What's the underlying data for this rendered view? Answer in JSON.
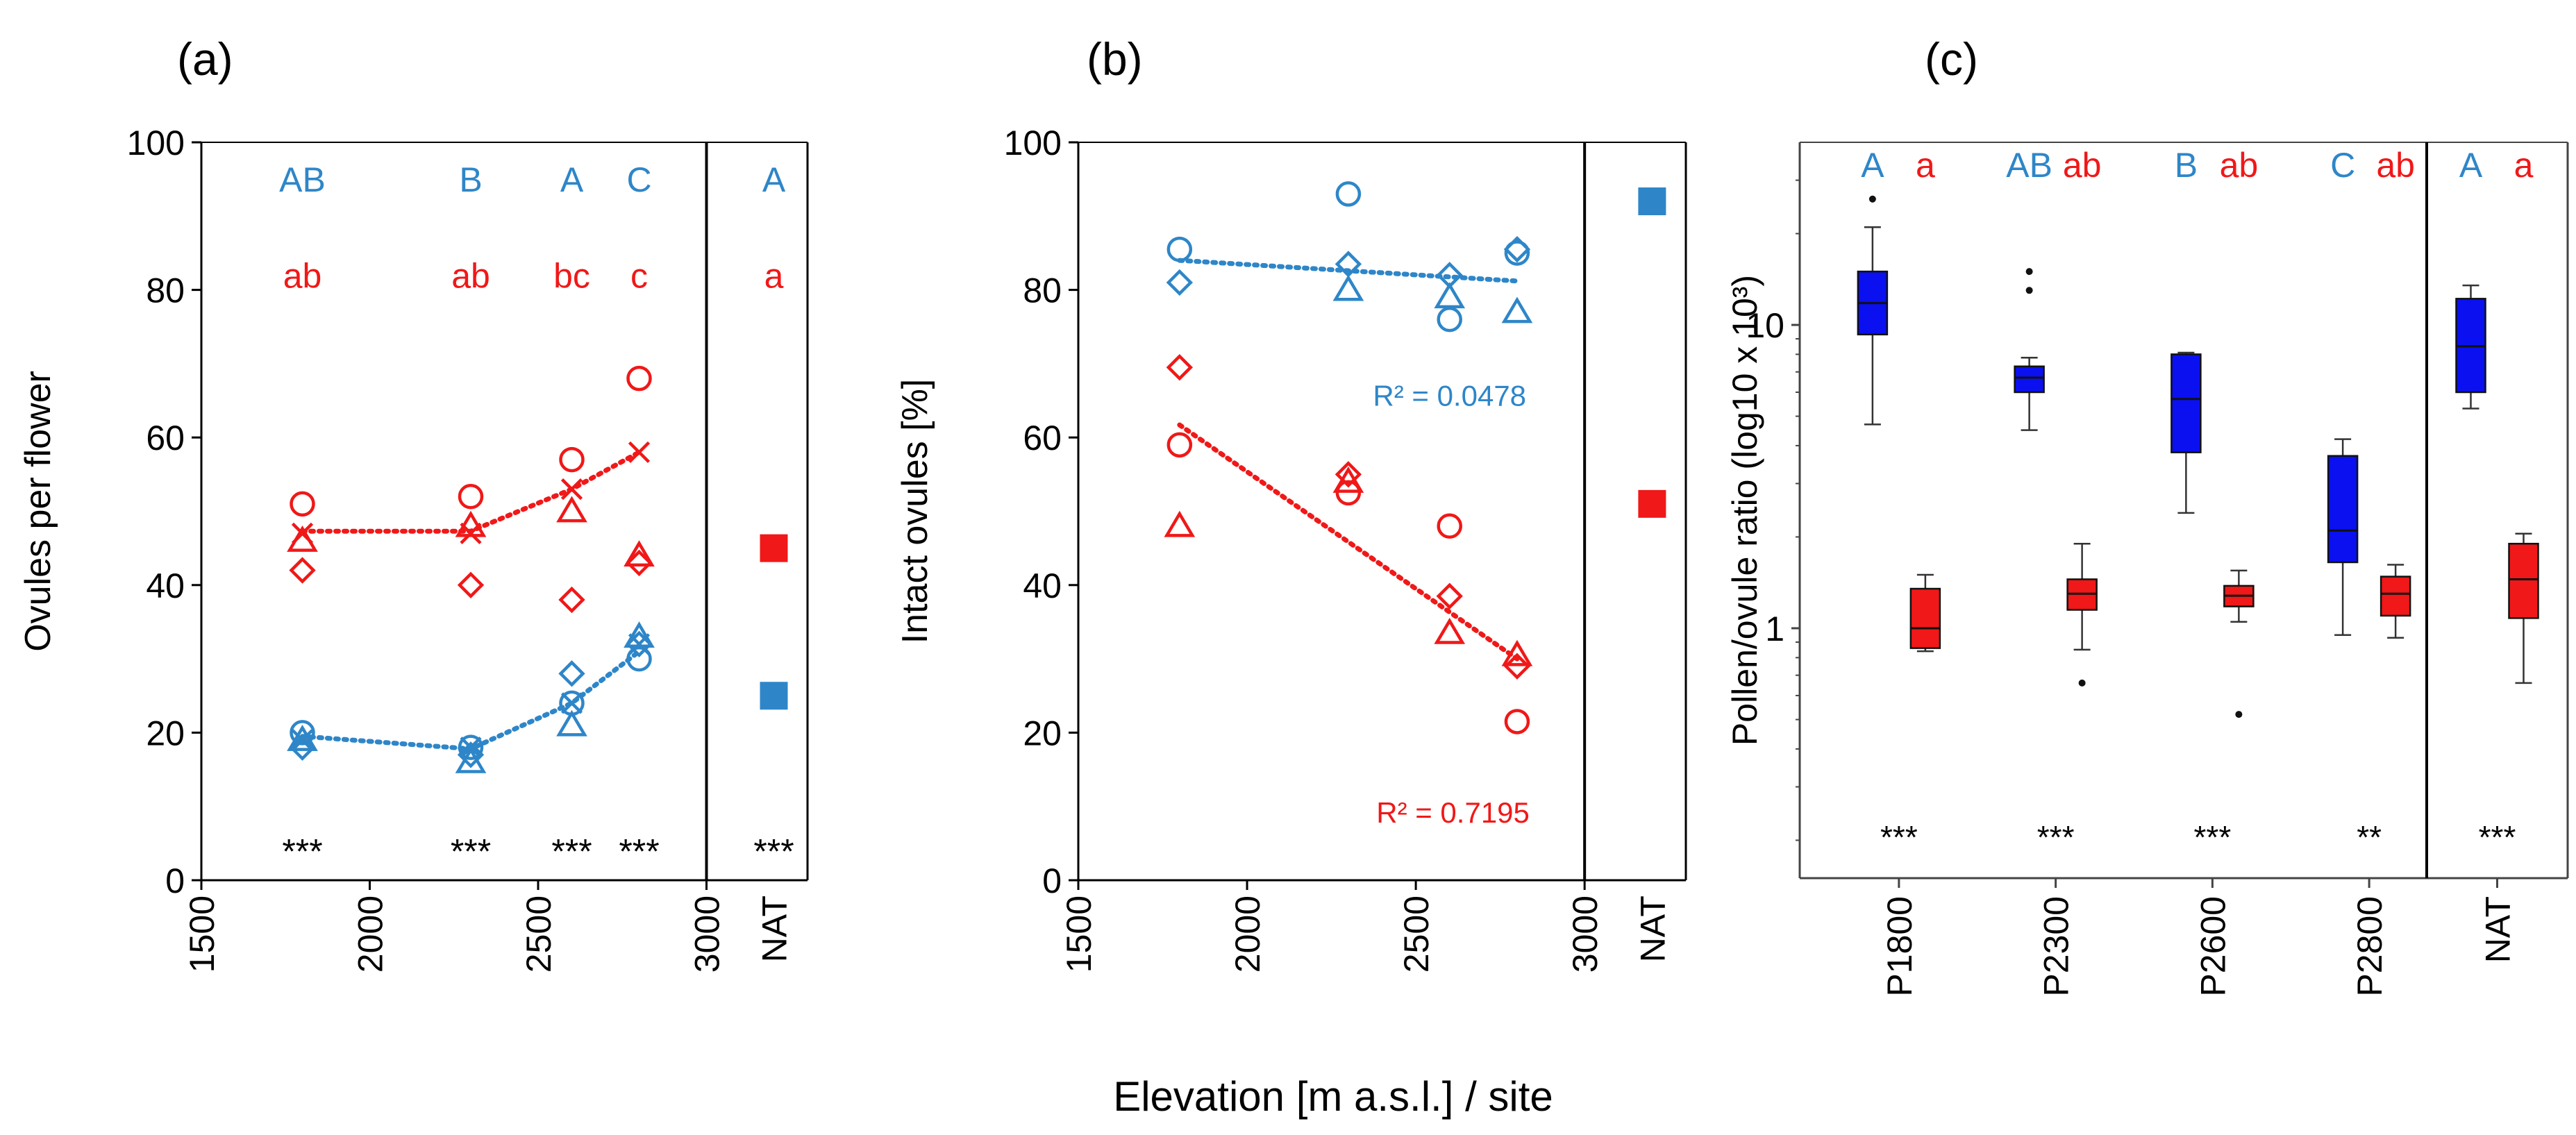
{
  "figure": {
    "shared_xlabel": "Elevation [m a.s.l.] / site",
    "colors": {
      "blue": "#2E86C8",
      "red": "#F01818",
      "box_blue": "#0A10F0",
      "box_red": "#F01818",
      "axis": "#000000"
    }
  },
  "chart_data": [
    {
      "panel_label": "(a)",
      "type": "scatter",
      "title": "",
      "xlabel": "",
      "ylabel": "Ovules per flower",
      "xlim": [
        1500,
        3300
      ],
      "ylim": [
        0,
        100
      ],
      "x_ticks": [
        "1500",
        "2000",
        "2500",
        "3000"
      ],
      "x_tick_values": [
        1500,
        2000,
        2500,
        3000
      ],
      "x_extra_ticks": [
        {
          "label": "NAT",
          "x": 3200
        }
      ],
      "y_ticks": [
        "0",
        "20",
        "40",
        "60",
        "80",
        "100"
      ],
      "y_tick_values": [
        0,
        20,
        40,
        60,
        80,
        100
      ],
      "divider_x": 3000,
      "series": [
        {
          "color": "red",
          "marker": "circle",
          "points": [
            [
              1800,
              51
            ],
            [
              2300,
              52
            ],
            [
              2600,
              57
            ],
            [
              2800,
              68
            ]
          ]
        },
        {
          "color": "red",
          "marker": "triangle",
          "points": [
            [
              1800,
              46
            ],
            [
              2300,
              48
            ],
            [
              2600,
              50
            ],
            [
              2800,
              44
            ]
          ]
        },
        {
          "color": "red",
          "marker": "diamond",
          "points": [
            [
              1800,
              42
            ],
            [
              2300,
              40
            ],
            [
              2600,
              38
            ],
            [
              2800,
              43
            ]
          ]
        },
        {
          "color": "red",
          "marker": "x",
          "points": [
            [
              1800,
              47
            ],
            [
              2300,
              47
            ],
            [
              2600,
              53
            ],
            [
              2800,
              58
            ]
          ]
        },
        {
          "color": "red",
          "marker": "square",
          "points": [
            [
              3200,
              45
            ]
          ]
        },
        {
          "color": "blue",
          "marker": "circle",
          "points": [
            [
              1800,
              20
            ],
            [
              2300,
              18
            ],
            [
              2600,
              24
            ],
            [
              2800,
              30
            ]
          ]
        },
        {
          "color": "blue",
          "marker": "triangle",
          "points": [
            [
              1800,
              19
            ],
            [
              2300,
              16
            ],
            [
              2600,
              21
            ],
            [
              2800,
              33
            ]
          ]
        },
        {
          "color": "blue",
          "marker": "diamond",
          "points": [
            [
              1800,
              18
            ],
            [
              2300,
              17
            ],
            [
              2600,
              28
            ],
            [
              2800,
              32
            ]
          ]
        },
        {
          "color": "blue",
          "marker": "x",
          "points": [
            [
              1800,
              19
            ],
            [
              2300,
              18
            ],
            [
              2600,
              24
            ],
            [
              2800,
              32
            ]
          ]
        },
        {
          "color": "blue",
          "marker": "square",
          "points": [
            [
              3200,
              25
            ]
          ]
        }
      ],
      "trend_lines": [
        {
          "color": "red",
          "points": [
            [
              1800,
              47.3
            ],
            [
              2300,
              47.3
            ],
            [
              2600,
              53
            ],
            [
              2800,
              58
            ]
          ]
        },
        {
          "color": "blue",
          "points": [
            [
              1800,
              19.5
            ],
            [
              2300,
              17.8
            ],
            [
              2600,
              24
            ],
            [
              2800,
              31
            ]
          ]
        }
      ],
      "annotations": [
        {
          "text": "AB",
          "x": 1800,
          "y": 95,
          "color": "blue"
        },
        {
          "text": "B",
          "x": 2300,
          "y": 95,
          "color": "blue"
        },
        {
          "text": "A",
          "x": 2600,
          "y": 95,
          "color": "blue"
        },
        {
          "text": "C",
          "x": 2800,
          "y": 95,
          "color": "blue"
        },
        {
          "text": "A",
          "x": 3200,
          "y": 95,
          "color": "blue"
        },
        {
          "text": "ab",
          "x": 1800,
          "y": 82,
          "color": "red"
        },
        {
          "text": "ab",
          "x": 2300,
          "y": 82,
          "color": "red"
        },
        {
          "text": "bc",
          "x": 2600,
          "y": 82,
          "color": "red"
        },
        {
          "text": "c",
          "x": 2800,
          "y": 82,
          "color": "red"
        },
        {
          "text": "a",
          "x": 3200,
          "y": 82,
          "color": "red"
        },
        {
          "text": "***",
          "x": 1800,
          "y": 4,
          "color": "black"
        },
        {
          "text": "***",
          "x": 2300,
          "y": 4,
          "color": "black"
        },
        {
          "text": "***",
          "x": 2600,
          "y": 4,
          "color": "black"
        },
        {
          "text": "***",
          "x": 2800,
          "y": 4,
          "color": "black"
        },
        {
          "text": "***",
          "x": 3200,
          "y": 4,
          "color": "black"
        }
      ]
    },
    {
      "panel_label": "(b)",
      "type": "scatter",
      "title": "",
      "xlabel": "",
      "ylabel": "Intact ovules [%]",
      "xlim": [
        1500,
        3300
      ],
      "ylim": [
        0,
        100
      ],
      "x_ticks": [
        "1500",
        "2000",
        "2500",
        "3000"
      ],
      "x_tick_values": [
        1500,
        2000,
        2500,
        3000
      ],
      "x_extra_ticks": [
        {
          "label": "NAT",
          "x": 3200
        }
      ],
      "y_ticks": [
        "0",
        "20",
        "40",
        "60",
        "80",
        "100"
      ],
      "y_tick_values": [
        0,
        20,
        40,
        60,
        80,
        100
      ],
      "divider_x": 3000,
      "series": [
        {
          "color": "blue",
          "marker": "circle",
          "points": [
            [
              1800,
              85.5
            ],
            [
              2300,
              93
            ],
            [
              2600,
              76
            ],
            [
              2800,
              85
            ]
          ]
        },
        {
          "color": "blue",
          "marker": "diamond",
          "points": [
            [
              1800,
              81
            ],
            [
              2300,
              83.5
            ],
            [
              2600,
              82
            ],
            [
              2800,
              85.5
            ]
          ]
        },
        {
          "color": "blue",
          "marker": "triangle",
          "points": [
            [
              2300,
              80
            ],
            [
              2600,
              79
            ],
            [
              2800,
              77
            ]
          ]
        },
        {
          "color": "blue",
          "marker": "square",
          "points": [
            [
              3200,
              92
            ]
          ]
        },
        {
          "color": "red",
          "marker": "diamond",
          "points": [
            [
              1800,
              69.5
            ],
            [
              2300,
              55
            ],
            [
              2600,
              38.5
            ],
            [
              2800,
              29
            ]
          ]
        },
        {
          "color": "red",
          "marker": "circle",
          "points": [
            [
              1800,
              59
            ],
            [
              2300,
              52.5
            ],
            [
              2600,
              48
            ],
            [
              2800,
              21.5
            ]
          ]
        },
        {
          "color": "red",
          "marker": "triangle",
          "points": [
            [
              1800,
              48
            ],
            [
              2300,
              54
            ],
            [
              2600,
              33.5
            ],
            [
              2800,
              30.5
            ]
          ]
        },
        {
          "color": "red",
          "marker": "square",
          "points": [
            [
              3200,
              51
            ]
          ]
        }
      ],
      "trend_lines": [
        {
          "color": "blue",
          "points": [
            [
              1800,
              84
            ],
            [
              2800,
              81.2
            ]
          ]
        },
        {
          "color": "red",
          "points": [
            [
              1800,
              61.7
            ],
            [
              2800,
              30
            ]
          ]
        }
      ],
      "annotations": [
        {
          "text": "R² = 0.0478",
          "x": 2600,
          "y": 66,
          "color": "blue"
        },
        {
          "text": "R² = 0.7195",
          "x": 2610,
          "y": 9.5,
          "color": "red"
        }
      ]
    },
    {
      "panel_label": "(c)",
      "type": "box",
      "title": "",
      "xlabel": "",
      "ylabel": "Pollen/ovule ratio (log10 x 10³)",
      "y_scale": "log",
      "ylim": [
        0.15,
        40
      ],
      "y_ticks": [
        "1",
        "10"
      ],
      "y_tick_values": [
        1,
        10
      ],
      "categories": [
        "P1800",
        "P2300",
        "P2600",
        "P2800",
        "NAT"
      ],
      "divider_after_index": 3,
      "series": [
        {
          "color": "box_blue",
          "boxes": [
            {
              "whisker_low": 4.7,
              "q1": 9.3,
              "median": 11.8,
              "q3": 15.0,
              "whisker_high": 21.0,
              "outliers": [
                26
              ]
            },
            {
              "whisker_low": 4.5,
              "q1": 6.0,
              "median": 6.7,
              "q3": 7.3,
              "whisker_high": 7.8,
              "outliers": [
                13,
                15
              ]
            },
            {
              "whisker_low": 2.4,
              "q1": 3.8,
              "median": 5.7,
              "q3": 8.0,
              "whisker_high": 8.1,
              "outliers": []
            },
            {
              "whisker_low": 0.95,
              "q1": 1.65,
              "median": 2.1,
              "q3": 3.7,
              "whisker_high": 4.2,
              "outliers": []
            },
            {
              "whisker_low": 5.3,
              "q1": 6.0,
              "median": 8.5,
              "q3": 12.2,
              "whisker_high": 13.5,
              "outliers": []
            }
          ]
        },
        {
          "color": "box_red",
          "boxes": [
            {
              "whisker_low": 0.84,
              "q1": 0.86,
              "median": 1.0,
              "q3": 1.35,
              "whisker_high": 1.5,
              "outliers": []
            },
            {
              "whisker_low": 0.85,
              "q1": 1.15,
              "median": 1.3,
              "q3": 1.45,
              "whisker_high": 1.9,
              "outliers": [
                0.66
              ]
            },
            {
              "whisker_low": 1.05,
              "q1": 1.18,
              "median": 1.28,
              "q3": 1.38,
              "whisker_high": 1.55,
              "outliers": [
                0.52
              ]
            },
            {
              "whisker_low": 0.93,
              "q1": 1.1,
              "median": 1.3,
              "q3": 1.48,
              "whisker_high": 1.62,
              "outliers": []
            },
            {
              "whisker_low": 0.66,
              "q1": 1.08,
              "median": 1.45,
              "q3": 1.9,
              "whisker_high": 2.05,
              "outliers": []
            }
          ]
        }
      ],
      "group_letters": [
        {
          "blue": "A",
          "red": "a"
        },
        {
          "blue": "AB",
          "red": "ab"
        },
        {
          "blue": "B",
          "red": "ab"
        },
        {
          "blue": "C",
          "red": "ab"
        },
        {
          "blue": "A",
          "red": "a"
        }
      ],
      "significance": [
        "***",
        "***",
        "***",
        "**",
        "***"
      ]
    }
  ]
}
